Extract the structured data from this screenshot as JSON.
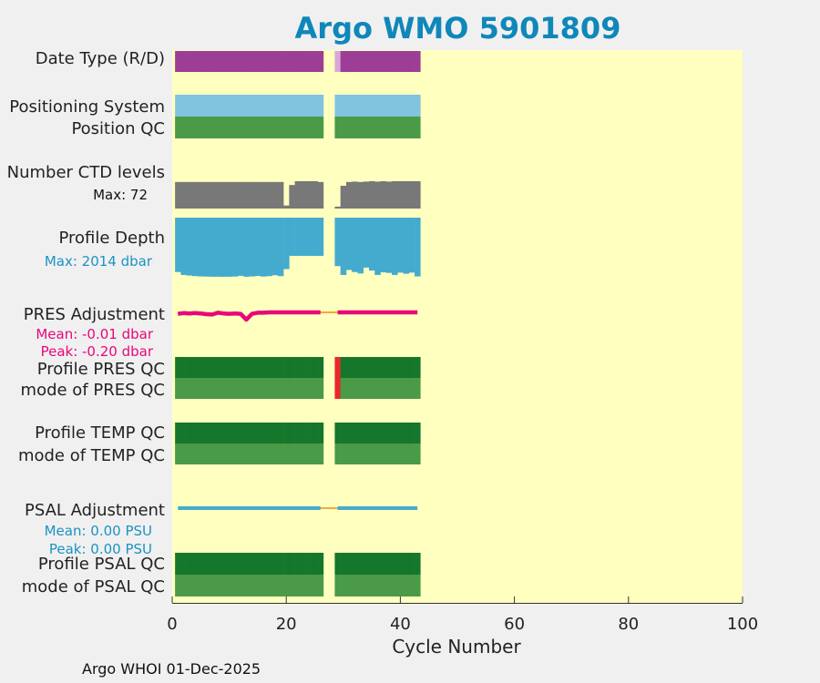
{
  "title": "Argo WMO 5901809",
  "footer": "Argo WHOI 01-Dec-2025",
  "colors": {
    "plot_bg": "#ffffc0",
    "axis": "#333333",
    "purple": "#9c3d96",
    "pink_light": "#d8a8d8",
    "light_blue": "#80c4e0",
    "green": "#4a9a48",
    "dark_green": "#15772b",
    "gray": "#787878",
    "depth_blue": "#45abce",
    "magenta": "#e8077a",
    "orange": "#f4a93a",
    "red": "#e8292b",
    "label_blue": "#1b93c4"
  },
  "chart_data": {
    "type": "table",
    "title": "Argo WMO 5901809",
    "xlabel": "Cycle Number",
    "xlim": [
      0,
      100
    ],
    "xticks": [
      0,
      20,
      40,
      60,
      80,
      100
    ],
    "cycles": [
      1,
      2,
      3,
      4,
      5,
      6,
      7,
      8,
      9,
      10,
      11,
      12,
      13,
      14,
      15,
      16,
      17,
      18,
      19,
      20,
      21,
      22,
      23,
      24,
      25,
      26,
      29,
      30,
      31,
      32,
      33,
      34,
      35,
      36,
      37,
      38,
      39,
      40,
      41,
      42,
      43
    ],
    "missing_cycles": [
      27,
      28
    ],
    "rows": [
      {
        "label": "Date Type (R/D)",
        "kind": "category",
        "color": "purple",
        "special": {
          "29": "pink_light"
        }
      },
      {
        "label": "Positioning System",
        "kind": "category",
        "color": "light_blue"
      },
      {
        "label": "Position QC",
        "kind": "category",
        "color": "green"
      },
      {
        "label": "Number CTD levels",
        "kind": "ctd_levels",
        "color": "gray",
        "note": "Max: 72"
      },
      {
        "label": "Profile Depth",
        "kind": "depth",
        "color": "depth_blue",
        "note": "Max: 2014 dbar"
      },
      {
        "label": "PRES Adjustment",
        "kind": "adjustment",
        "color": "magenta",
        "notes": [
          "Mean: -0.01 dbar",
          "Peak: -0.20 dbar"
        ]
      },
      {
        "label": "Profile PRES QC",
        "kind": "category",
        "color": "dark_green",
        "special": {
          "29": "red"
        }
      },
      {
        "label": "mode of PRES QC",
        "kind": "category",
        "color": "green",
        "special": {
          "29": "red"
        }
      },
      {
        "label": "Profile TEMP QC",
        "kind": "category",
        "color": "dark_green"
      },
      {
        "label": "mode of TEMP QC",
        "kind": "category",
        "color": "green"
      },
      {
        "label": "PSAL Adjustment",
        "kind": "adjustment",
        "color": "depth_blue",
        "notes": [
          "Mean: 0.00 PSU",
          "Peak: 0.00 PSU"
        ]
      },
      {
        "label": "Profile PSAL QC",
        "kind": "category",
        "color": "dark_green"
      },
      {
        "label": "mode of PSAL QC",
        "kind": "category",
        "color": "green"
      }
    ],
    "ctd_levels_max": 72,
    "ctd_levels": {
      "1": 70,
      "2": 70,
      "3": 70,
      "4": 70,
      "5": 70,
      "6": 70,
      "7": 70,
      "8": 70,
      "9": 70,
      "10": 70,
      "11": 70,
      "12": 70,
      "13": 70,
      "14": 70,
      "15": 70,
      "16": 70,
      "17": 70,
      "18": 70,
      "19": 70,
      "20": 8,
      "21": 62,
      "22": 72,
      "23": 72,
      "24": 72,
      "25": 72,
      "26": 70,
      "29": 5,
      "30": 60,
      "31": 70,
      "32": 71,
      "33": 70,
      "34": 71,
      "35": 72,
      "36": 71,
      "37": 72,
      "38": 71,
      "39": 72,
      "40": 72,
      "41": 72,
      "42": 72,
      "43": 72
    },
    "depth_max": 2014,
    "profile_depth": {
      "1": 1850,
      "2": 1950,
      "3": 1970,
      "4": 1990,
      "5": 2000,
      "6": 2005,
      "7": 2010,
      "8": 2010,
      "9": 2012,
      "10": 2010,
      "11": 2005,
      "12": 1980,
      "13": 2010,
      "14": 2000,
      "15": 1985,
      "16": 2005,
      "17": 1990,
      "18": 1960,
      "19": 1990,
      "20": 1750,
      "21": 1300,
      "22": 1300,
      "23": 1300,
      "24": 1300,
      "25": 1300,
      "26": 1300,
      "29": 1650,
      "30": 1950,
      "31": 1780,
      "32": 1850,
      "33": 1900,
      "34": 1700,
      "35": 1800,
      "36": 1950,
      "37": 1860,
      "38": 1880,
      "39": 1950,
      "40": 1870,
      "41": 1910,
      "42": 1870,
      "43": 2000
    },
    "pres_adjustment": {
      "1": -0.04,
      "2": -0.02,
      "3": -0.03,
      "4": -0.02,
      "5": -0.03,
      "6": -0.05,
      "7": -0.06,
      "8": -0.01,
      "9": -0.03,
      "10": -0.04,
      "11": -0.03,
      "12": -0.04,
      "13": -0.2,
      "14": -0.04,
      "15": -0.01,
      "16": -0.01,
      "17": 0.0,
      "18": 0.0,
      "19": 0.0,
      "20": 0.0,
      "21": 0.0,
      "22": 0.0,
      "23": 0.0,
      "24": 0.0,
      "25": 0.0,
      "26": 0.0,
      "29": 0.0,
      "30": 0.0,
      "31": 0.0,
      "32": 0.0,
      "33": 0.0,
      "34": 0.0,
      "35": 0.0,
      "36": 0.0,
      "37": 0.0,
      "38": 0.0,
      "39": 0.0,
      "40": 0.0,
      "41": 0.0,
      "42": 0.0,
      "43": 0.0
    },
    "pres_adjustment_mean": -0.01,
    "pres_adjustment_peak": -0.2,
    "psal_adjustment_mean": 0.0,
    "psal_adjustment_peak": 0.0
  }
}
